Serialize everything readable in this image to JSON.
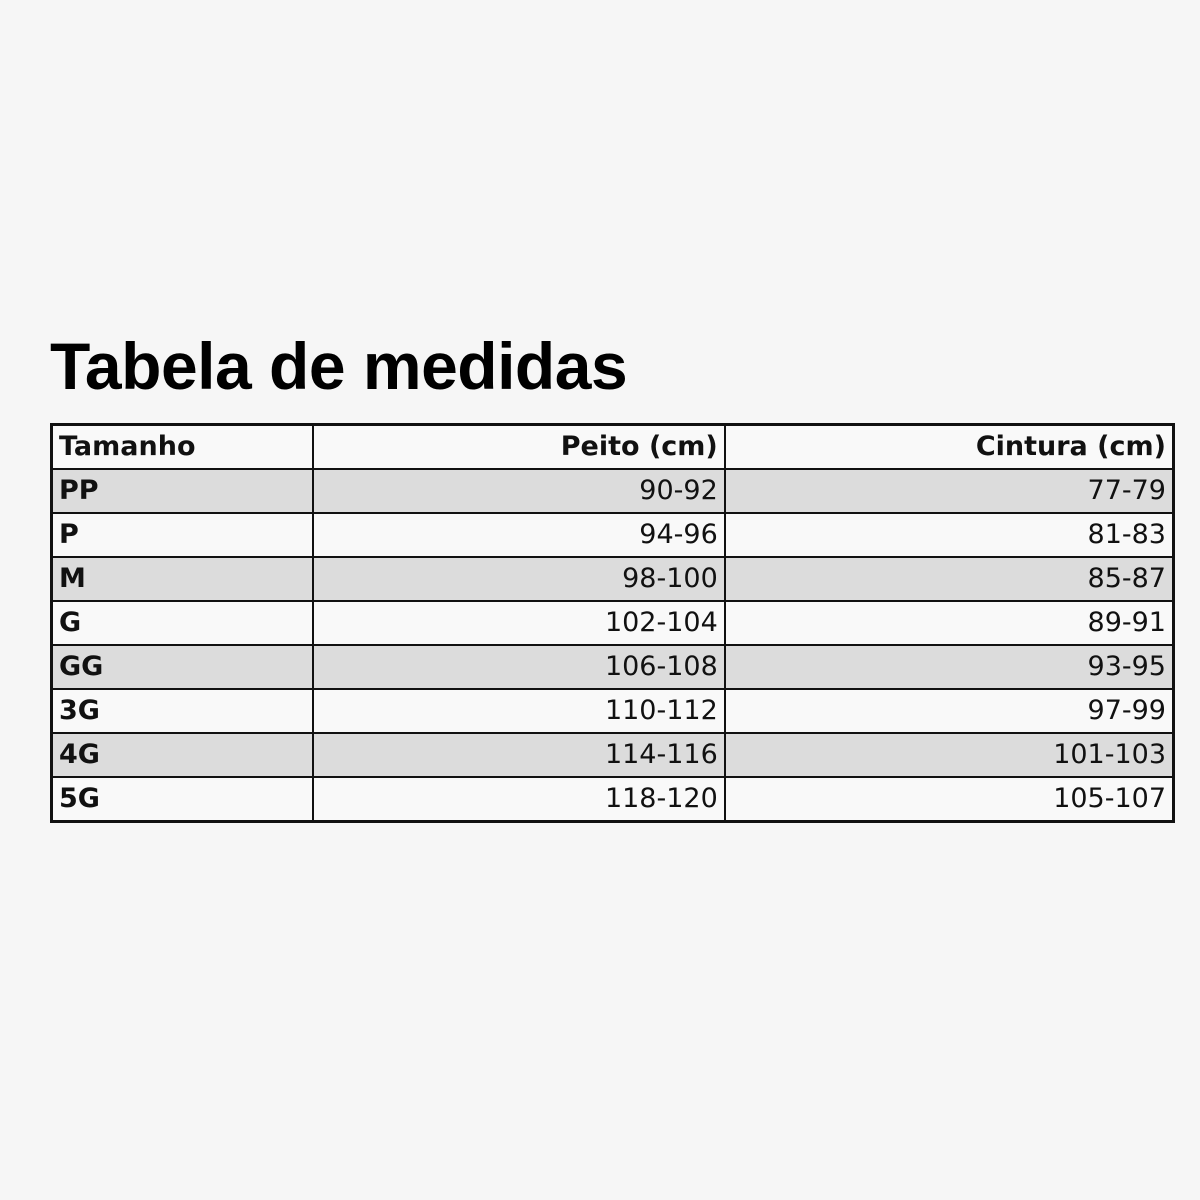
{
  "title": "Tabela de medidas",
  "table": {
    "headers": [
      "Tamanho",
      "Peito (cm)",
      "Cintura (cm)"
    ],
    "rows": [
      {
        "size": "PP",
        "peito": "90-92",
        "cintura": "77-79"
      },
      {
        "size": "P",
        "peito": "94-96",
        "cintura": "81-83"
      },
      {
        "size": "M",
        "peito": "98-100",
        "cintura": "85-87"
      },
      {
        "size": "G",
        "peito": "102-104",
        "cintura": "89-91"
      },
      {
        "size": "GG",
        "peito": "106-108",
        "cintura": "93-95"
      },
      {
        "size": "3G",
        "peito": "110-112",
        "cintura": "97-99"
      },
      {
        "size": "4G",
        "peito": "114-116",
        "cintura": "101-103"
      },
      {
        "size": "5G",
        "peito": "118-120",
        "cintura": "105-107"
      }
    ]
  },
  "colors": {
    "background": "#f6f6f6",
    "stripe": "#dcdcdc",
    "border": "#111111"
  }
}
